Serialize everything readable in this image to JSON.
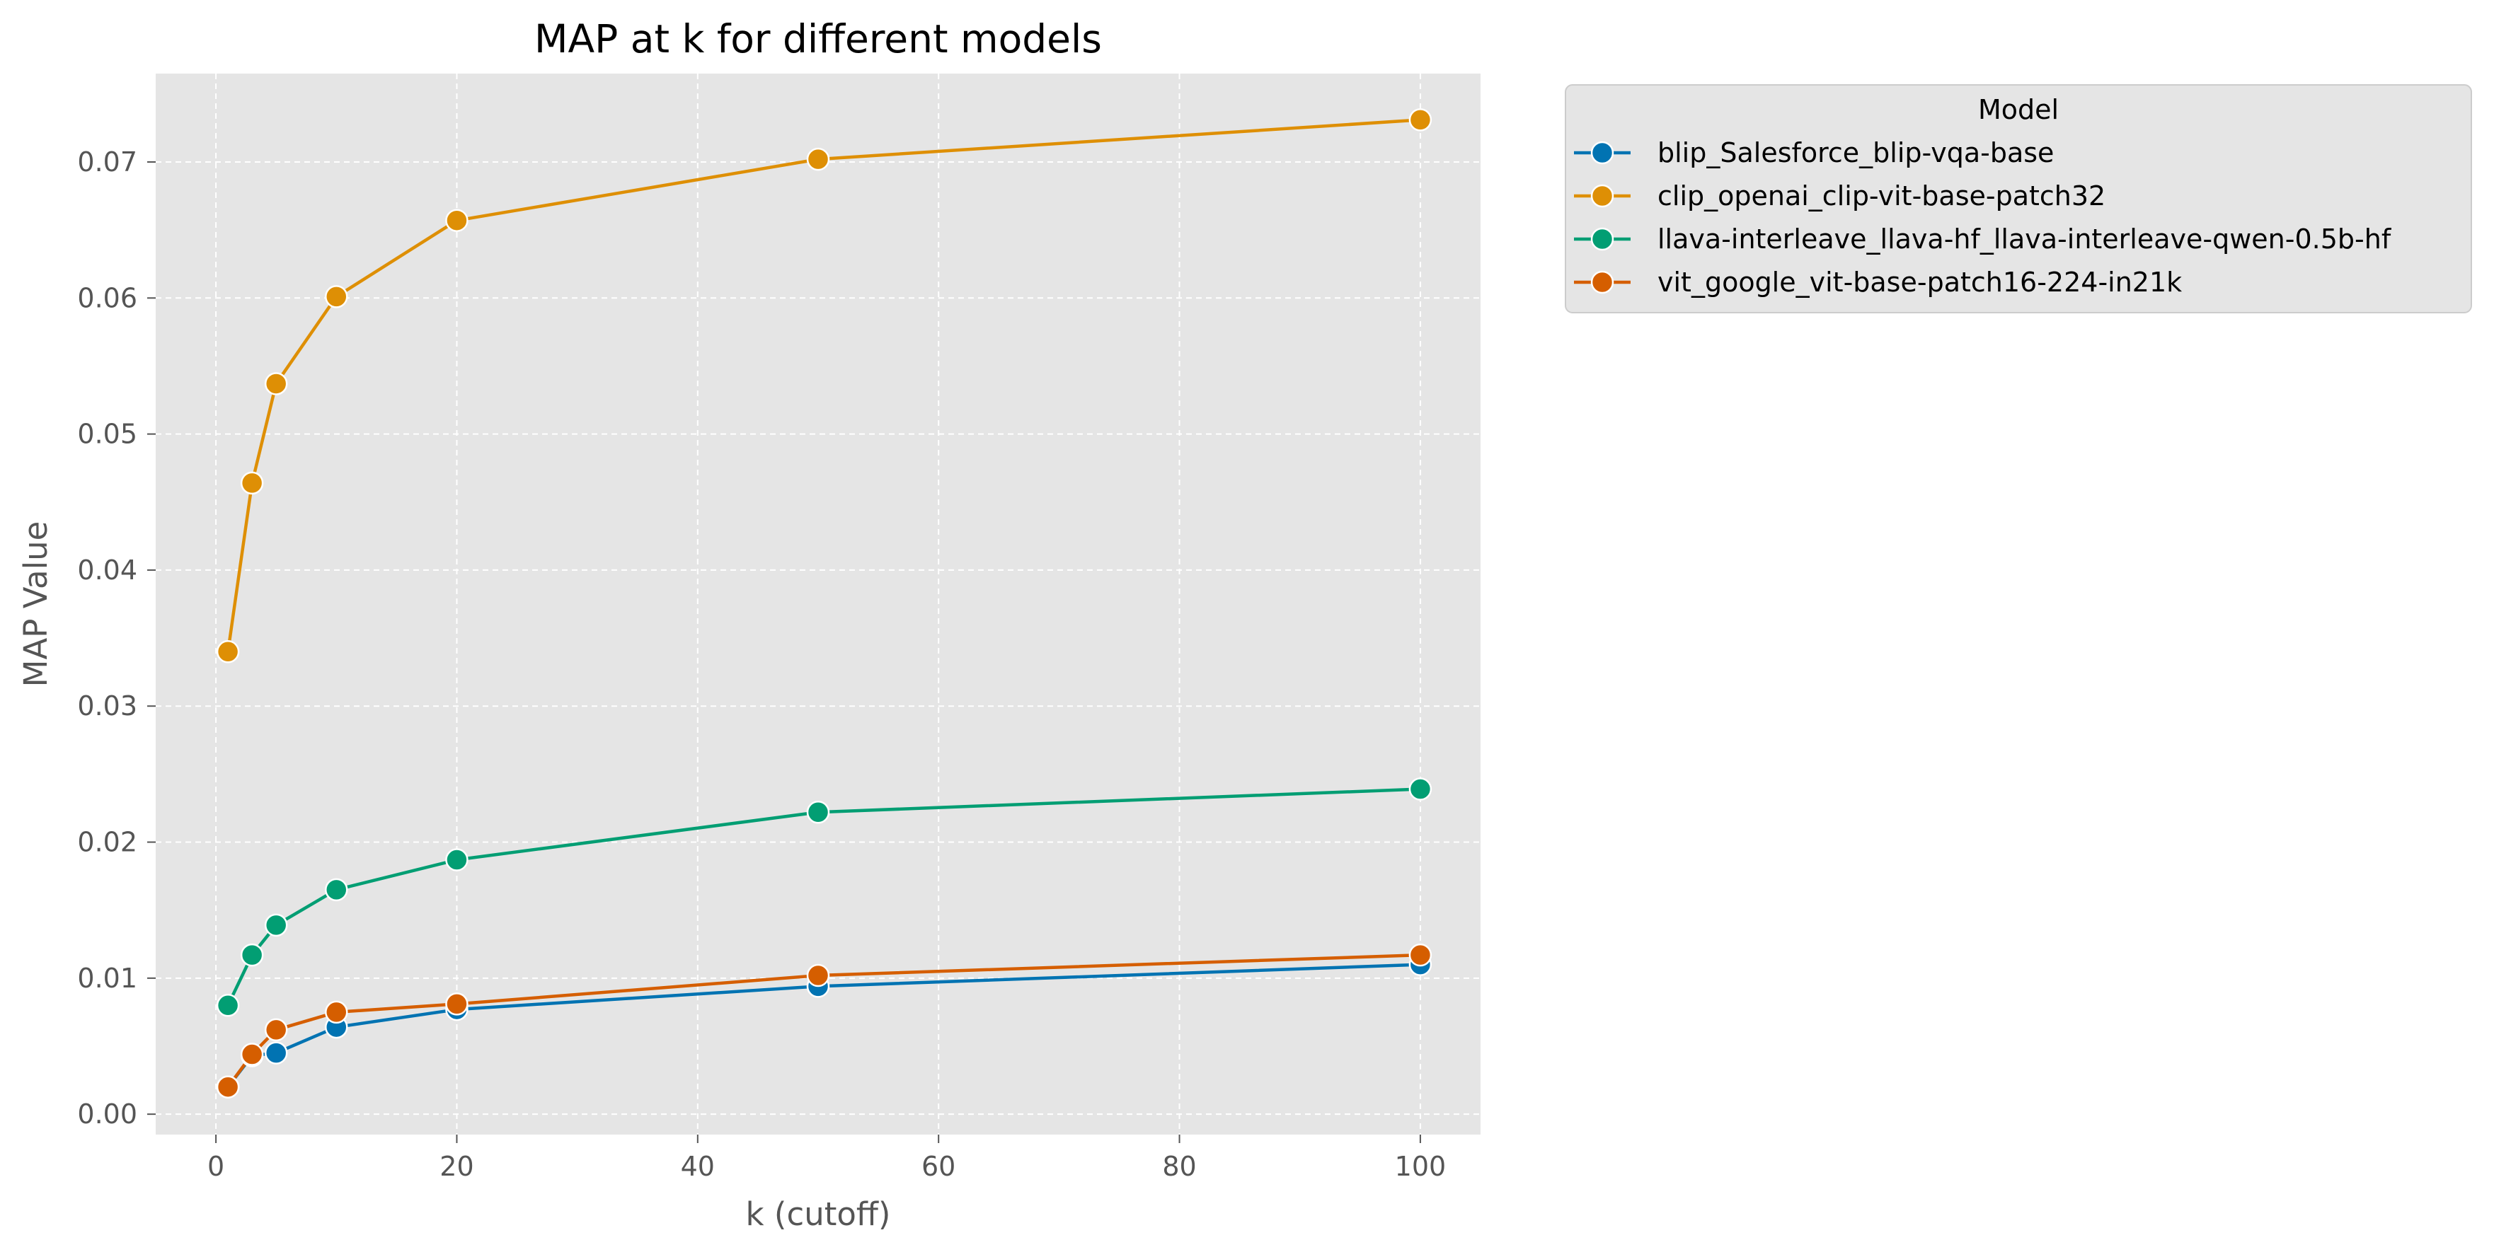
{
  "chart_data": {
    "type": "line",
    "title": "MAP at k for different models",
    "xlabel": "k (cutoff)",
    "ylabel": "MAP Value",
    "xlim": [
      -5,
      105
    ],
    "ylim": [
      -0.0015,
      0.0765
    ],
    "xticks": [
      0,
      20,
      40,
      60,
      80,
      100
    ],
    "xtick_labels": [
      "0",
      "20",
      "40",
      "60",
      "80",
      "100"
    ],
    "yticks": [
      0.0,
      0.01,
      0.02,
      0.03,
      0.04,
      0.05,
      0.06,
      0.07
    ],
    "ytick_labels": [
      "0.00",
      "0.01",
      "0.02",
      "0.03",
      "0.04",
      "0.05",
      "0.06",
      "0.07"
    ],
    "grid": true,
    "legend_title": "Model",
    "legend_placement": "outside upper right",
    "x": [
      1,
      3,
      5,
      10,
      20,
      50,
      100
    ],
    "series": [
      {
        "name": "blip_Salesforce_blip-vqa-base",
        "color": "#0173b2",
        "values": [
          0.002,
          0.0043,
          0.0045,
          0.0064,
          0.0077,
          0.0094,
          0.011
        ]
      },
      {
        "name": "clip_openai_clip-vit-base-patch32",
        "color": "#de8f05",
        "values": [
          0.034,
          0.0464,
          0.0537,
          0.0601,
          0.0657,
          0.0702,
          0.0731
        ]
      },
      {
        "name": "llava-interleave_llava-hf_llava-interleave-qwen-0.5b-hf",
        "color": "#029e73",
        "values": [
          0.008,
          0.0117,
          0.0139,
          0.0165,
          0.0187,
          0.0222,
          0.0239
        ]
      },
      {
        "name": "vit_google_vit-base-patch16-224-in21k",
        "color": "#d55e00",
        "values": [
          0.002,
          0.0044,
          0.0062,
          0.0075,
          0.0081,
          0.0102,
          0.0117
        ]
      }
    ]
  }
}
